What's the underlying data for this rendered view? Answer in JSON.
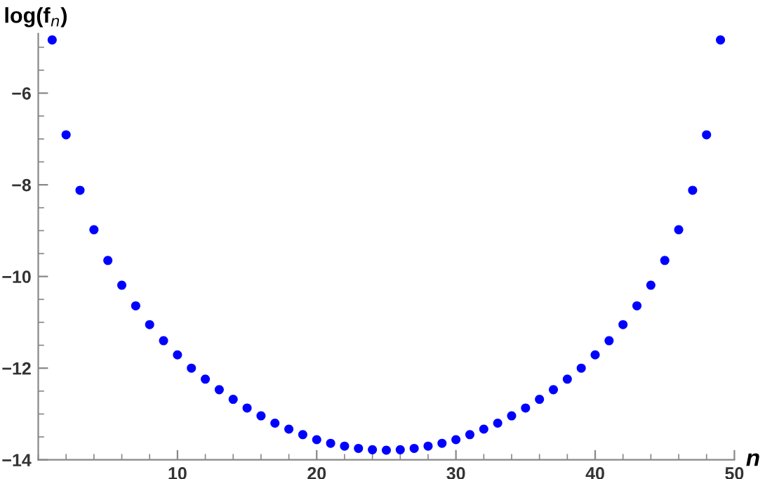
{
  "chart_data": {
    "type": "scatter",
    "xlabel": "n",
    "ylabel": "log(f$_{n}$)",
    "x": [
      1,
      2,
      3,
      4,
      5,
      6,
      7,
      8,
      9,
      10,
      11,
      12,
      13,
      14,
      15,
      16,
      17,
      18,
      19,
      20,
      21,
      22,
      23,
      24,
      25,
      26,
      27,
      28,
      29,
      30,
      31,
      32,
      33,
      34,
      35,
      36,
      37,
      38,
      39,
      40,
      41,
      42,
      43,
      44,
      45,
      46,
      47,
      48,
      49
    ],
    "series": [
      {
        "color": "#0000ff",
        "values": [
          -4.84,
          -6.91,
          -8.12,
          -8.98,
          -9.65,
          -10.19,
          -10.64,
          -11.05,
          -11.4,
          -11.71,
          -12.0,
          -12.24,
          -12.47,
          -12.68,
          -12.87,
          -13.04,
          -13.2,
          -13.33,
          -13.45,
          -13.56,
          -13.64,
          -13.7,
          -13.75,
          -13.78,
          -13.79,
          -13.78,
          -13.75,
          -13.7,
          -13.64,
          -13.56,
          -13.45,
          -13.33,
          -13.2,
          -13.04,
          -12.87,
          -12.68,
          -12.47,
          -12.24,
          -12.0,
          -11.71,
          -11.4,
          -11.05,
          -10.64,
          -10.19,
          -9.65,
          -8.98,
          -8.12,
          -6.91,
          -4.84
        ]
      }
    ],
    "xlim": [
      0,
      50
    ],
    "ylim": [
      -14,
      -4.7
    ],
    "xticks": [
      10,
      20,
      30,
      40,
      50
    ],
    "yticks": [
      -14,
      -12,
      -10,
      -8,
      -6
    ],
    "marker": "circle",
    "grid": false,
    "legend": false
  }
}
